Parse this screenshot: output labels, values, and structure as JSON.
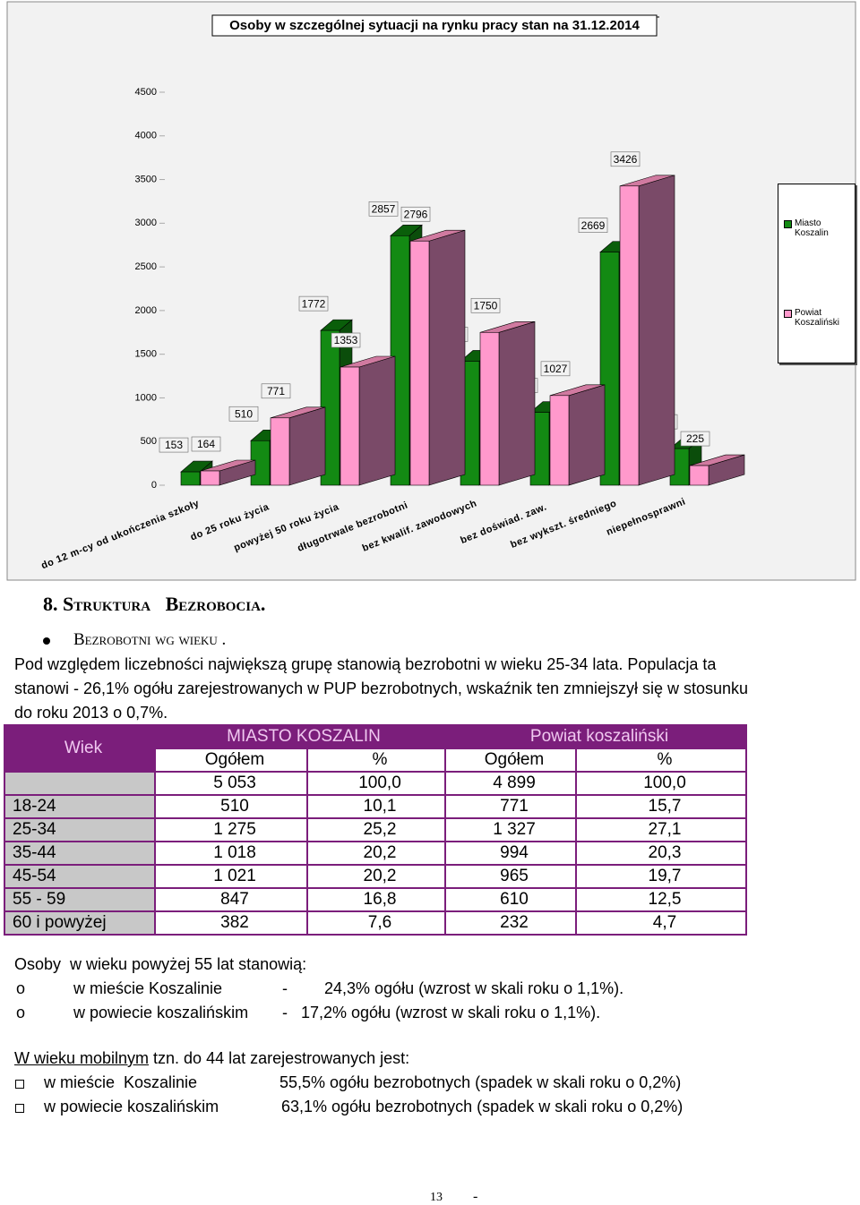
{
  "chart_data": {
    "type": "bar",
    "title": "Osoby w szczególnej sytuacji na rynku pracy stan na 31.12.2014",
    "categories": [
      "do 12 m-cy od ukończenia szkoły",
      "do 25 roku życia",
      "powyżej 50 roku życia",
      "długotrwale bezrobotni",
      "bez kwalif. zawodowych",
      "bez doświad. zaw.",
      "bez wykszt. średniego",
      "niepełnosprawni"
    ],
    "series": [
      {
        "name": "Miasto Koszalin",
        "color": "#138a13",
        "values": [
          153,
          510,
          1772,
          2857,
          1420,
          834,
          2669,
          419
        ]
      },
      {
        "name": "Powiat Koszaliński",
        "color": "#ff99cc",
        "values": [
          164,
          771,
          1353,
          2796,
          1750,
          1027,
          3426,
          225
        ]
      }
    ],
    "ylim": [
      0,
      4500
    ],
    "yticks": [
      0,
      500,
      1000,
      1500,
      2000,
      2500,
      3000,
      3500,
      4000,
      4500
    ],
    "legend": "right"
  },
  "document": {
    "heading": "8. Struktura   Bezrobocia.",
    "subheading": "Bezrobotni wg wieku .",
    "paragraph": [
      "Pod względem liczebności największą grupę stanowią bezrobotni w wieku 25-34 lata. Populacja ta",
      "stanowi - 26,1% ogółu zarejestrowanych w PUP bezrobotnych, wskaźnik ten zmniejszył się w stosunku",
      "do roku 2013 o 0,7%."
    ],
    "table": {
      "header": [
        "Wiek",
        "MIASTO KOSZALIN",
        "Powiat koszaliński"
      ],
      "subheader": [
        "Ogółem",
        "%",
        "Ogółem",
        "%"
      ],
      "totals": [
        "5 053",
        "100,0",
        "4 899",
        "100,0"
      ],
      "rows": [
        [
          "18-24",
          "510",
          "10,1",
          "771",
          "15,7"
        ],
        [
          "25-34",
          "1 275",
          "25,2",
          "1 327",
          "27,1"
        ],
        [
          "35-44",
          "1 018",
          "20,2",
          "994",
          "20,3"
        ],
        [
          "45-54",
          "1 021",
          "20,2",
          "965",
          "19,7"
        ],
        [
          "55 - 59",
          "847",
          "16,8",
          "610",
          "12,5"
        ],
        [
          "60 i powyżej",
          "382",
          "7,6",
          "232",
          "4,7"
        ]
      ]
    },
    "over55": {
      "intro": "Osoby  w wieku powyżej 55 lat stanowią:",
      "items": [
        {
          "marker": "o",
          "place": "w mieście Koszalinie",
          "dash": "-",
          "text": "24,3% ogółu (wzrost w skali roku o 1,1%)."
        },
        {
          "marker": "o",
          "place": "w powiecie koszalińskim",
          "dash": "-",
          "text": "17,2% ogółu (wzrost w skali roku o 1,1%)."
        }
      ]
    },
    "mobile": {
      "underlined": "W wieku mobilnym",
      "rest": " tzn. do 44 lat zarejestrowanych jest:",
      "items": [
        {
          "place": "w mieście  Koszalinie",
          "text": "55,5% ogółu bezrobotnych (spadek w skali roku o 0,2%)"
        },
        {
          "place": "w powiecie koszalińskim",
          "text": "63,1% ogółu bezrobotnych (spadek w skali roku o 0,2%)"
        }
      ]
    },
    "footer": {
      "page": "13",
      "dash": "-"
    }
  }
}
